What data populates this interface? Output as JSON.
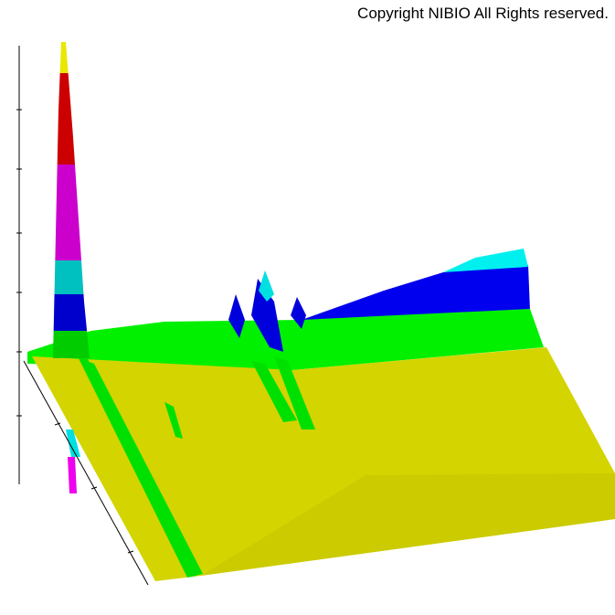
{
  "copyright": "Copyright NIBIO All Rights reserved."
}
